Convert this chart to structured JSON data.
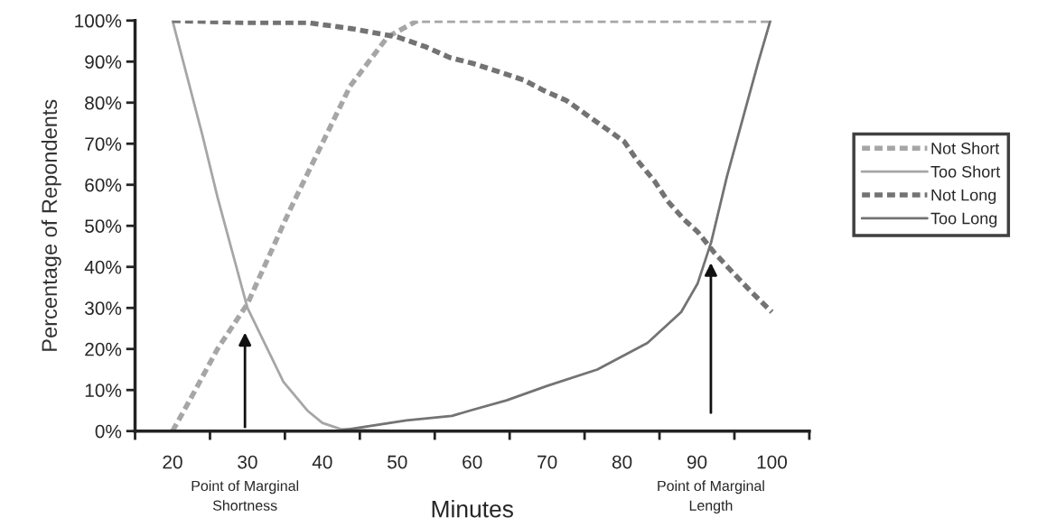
{
  "chart_data": {
    "type": "line",
    "xlabel": "Minutes",
    "ylabel": "Percentage of Repondents",
    "xlim": [
      15,
      105
    ],
    "xticks": [
      {
        "value": 15,
        "label": null
      },
      {
        "value": 20,
        "label": "20"
      },
      {
        "value": 25,
        "label": null
      },
      {
        "value": 30,
        "label": "30"
      },
      {
        "value": 35,
        "label": null
      },
      {
        "value": 40,
        "label": "40"
      },
      {
        "value": 45,
        "label": null
      },
      {
        "value": 50,
        "label": "50"
      },
      {
        "value": 55,
        "label": null
      },
      {
        "value": 60,
        "label": "60"
      },
      {
        "value": 65,
        "label": null
      },
      {
        "value": 70,
        "label": "70"
      },
      {
        "value": 75,
        "label": null
      },
      {
        "value": 80,
        "label": "80"
      },
      {
        "value": 85,
        "label": null
      },
      {
        "value": 90,
        "label": "90"
      },
      {
        "value": 95,
        "label": null
      },
      {
        "value": 100,
        "label": "100"
      },
      {
        "value": 105,
        "label": null
      }
    ],
    "ylim": [
      0,
      100
    ],
    "yticks": [
      {
        "value": 0,
        "label": "0%"
      },
      {
        "value": 10,
        "label": "10%"
      },
      {
        "value": 20,
        "label": "20%"
      },
      {
        "value": 30,
        "label": "30%"
      },
      {
        "value": 40,
        "label": "40%"
      },
      {
        "value": 50,
        "label": "50%"
      },
      {
        "value": 60,
        "label": "60%"
      },
      {
        "value": 70,
        "label": "70%"
      },
      {
        "value": 80,
        "label": "80%"
      },
      {
        "value": 90,
        "label": "90%"
      },
      {
        "value": 100,
        "label": "100%"
      }
    ],
    "grid": false,
    "legend": "right",
    "marker": "none",
    "series": [
      {
        "name": "Not Short",
        "color": "#a6a6a6",
        "line_style": "dashed",
        "x": [
          20,
          22.3,
          26,
          30,
          35.7,
          40.1,
          43.7,
          48.7,
          52.7,
          60,
          70,
          80,
          90,
          100
        ],
        "values": [
          0,
          7.5,
          20,
          31,
          54,
          70.5,
          84,
          96,
          100,
          100,
          100,
          100,
          100,
          100
        ]
      },
      {
        "name": "Too Short",
        "color": "#a6a6a6",
        "line_style": "solid",
        "x": [
          20,
          24,
          26,
          30,
          34.8,
          38,
          40,
          42.4,
          50,
          60,
          70,
          80,
          90,
          100
        ],
        "values": [
          100,
          72,
          57,
          30,
          12,
          5,
          2,
          0.5,
          0,
          0,
          0,
          0,
          0,
          0
        ]
      },
      {
        "name": "Not Long",
        "color": "#737373",
        "line_style": "dashed",
        "x": [
          20,
          30,
          38,
          44,
          50,
          53.8,
          57,
          60.2,
          63.6,
          66.9,
          69.5,
          72.6,
          75.3,
          78,
          80.3,
          82,
          84.3,
          86.1,
          88.3,
          90.1,
          92.3,
          94.6,
          97.2,
          100
        ],
        "values": [
          100,
          99.5,
          99.5,
          98,
          96,
          93.6,
          91,
          89.5,
          87.5,
          85.5,
          83,
          80.5,
          77,
          73.5,
          70.5,
          66,
          61,
          56,
          51.5,
          48.5,
          43.5,
          39,
          34,
          29
        ]
      },
      {
        "name": "Too Long",
        "color": "#737373",
        "line_style": "solid",
        "x": [
          20,
          30,
          42,
          51.2,
          57.3,
          59.7,
          64.6,
          70,
          76.7,
          83.4,
          87.9,
          90.1,
          91.9,
          94,
          96.4,
          98.2,
          99.8
        ],
        "values": [
          0,
          0,
          0,
          2.6,
          3.7,
          5,
          7.5,
          11,
          15,
          21.5,
          29,
          36,
          46,
          62,
          78,
          90,
          100
        ]
      }
    ],
    "annotations": [
      "Point of Marginal\nShortness",
      "Point of Marginal\nLength"
    ]
  }
}
